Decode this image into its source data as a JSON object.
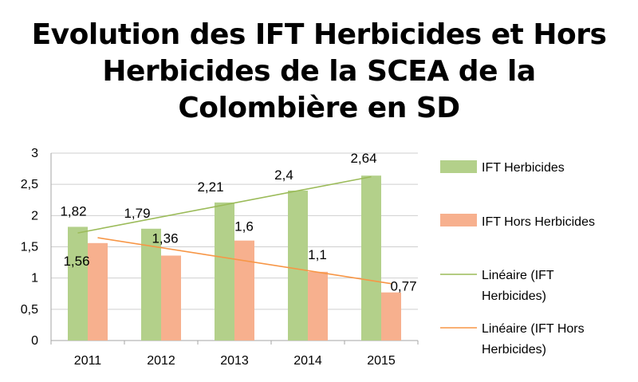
{
  "title_lines": [
    "Evolution des IFT Herbicides et Hors",
    "Herbicides de la SCEA de la",
    "Colombière en SD"
  ],
  "chart_data": {
    "type": "bar",
    "title": "Evolution des IFT Herbicides et Hors Herbicides de la SCEA de la Colombière en SD",
    "categories": [
      "2011",
      "2012",
      "2013",
      "2014",
      "2015"
    ],
    "series": [
      {
        "name": "IFT Herbicides",
        "values": [
          1.82,
          1.79,
          2.21,
          2.4,
          2.64
        ],
        "labels": [
          "1,82",
          "1,79",
          "2,21",
          "2,4",
          "2,64"
        ],
        "color": "#b3d08a"
      },
      {
        "name": "IFT Hors Herbicides",
        "values": [
          1.56,
          1.36,
          1.6,
          1.1,
          0.77
        ],
        "labels": [
          "1,56",
          "1,36",
          "1,6",
          "1,1",
          "0,77"
        ],
        "color": "#f7b08e"
      }
    ],
    "trendlines": [
      {
        "series_index": 0,
        "legend_lines": [
          "Linéaire (IFT",
          "Herbicides)"
        ],
        "color": "#9bbb59"
      },
      {
        "series_index": 1,
        "legend_lines": [
          "Linéaire (IFT Hors",
          "Herbicides)"
        ],
        "color": "#f79646"
      }
    ],
    "ylim": [
      0,
      3
    ],
    "yticks": [
      0,
      0.5,
      1,
      1.5,
      2,
      2.5,
      3
    ],
    "ytick_labels": [
      "0",
      "0,5",
      "1",
      "1,5",
      "2",
      "2,5",
      "3"
    ],
    "grid": true,
    "legend_position": "right",
    "xlabel": "",
    "ylabel": ""
  }
}
